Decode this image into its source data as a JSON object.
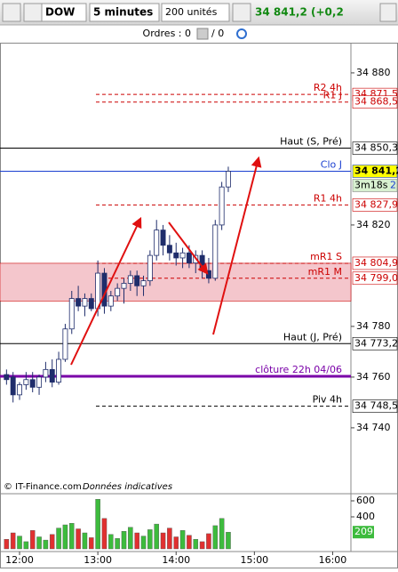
{
  "toolbar": {
    "instrument": "DOW",
    "timeframe": "5 minutes",
    "units": "200 unités",
    "price": "34 841,2 (+0,2"
  },
  "orders": {
    "label": "Ordres : 0",
    "pending": "/ 0"
  },
  "footer": {
    "source": "© IT-Finance.com",
    "note": "Données indicatives"
  },
  "chart_data": {
    "type": "candlestick",
    "x": [
      "11:50",
      "11:55",
      "12:00",
      "12:05",
      "12:10",
      "12:15",
      "12:20",
      "12:25",
      "12:30",
      "12:35",
      "12:40",
      "12:45",
      "12:50",
      "12:55",
      "13:00",
      "13:05",
      "13:10",
      "13:15",
      "13:20",
      "13:25",
      "13:30",
      "13:35",
      "13:40",
      "13:45",
      "13:50",
      "13:55",
      "14:00",
      "14:05",
      "14:10",
      "14:15",
      "14:20",
      "14:25",
      "14:30",
      "14:35",
      "14:40"
    ],
    "open": [
      34761,
      34760,
      34753,
      34757,
      34759,
      34756,
      34760,
      34763,
      34758,
      34767,
      34779,
      34791,
      34788,
      34791,
      34787,
      34801,
      34788,
      34792,
      34795,
      34797,
      34800,
      34796,
      34798,
      34808,
      34818,
      34812,
      34809,
      34807,
      34809,
      34805,
      34808,
      34802,
      34799,
      34820,
      34835
    ],
    "high": [
      34763,
      34762,
      34758,
      34762,
      34762,
      34761,
      34766,
      34767,
      34770,
      34781,
      34794,
      34796,
      34793,
      34793,
      34806,
      34803,
      34794,
      34797,
      34799,
      34802,
      34802,
      34800,
      34810,
      34822,
      34820,
      34816,
      34813,
      34811,
      34812,
      34810,
      34810,
      34807,
      34822,
      34837,
      34843
    ],
    "low": [
      34757,
      34750,
      34751,
      34755,
      34754,
      34753,
      34758,
      34756,
      34757,
      34766,
      34777,
      34786,
      34784,
      34786,
      34784,
      34785,
      34786,
      34790,
      34789,
      34794,
      34792,
      34792,
      34796,
      34806,
      34808,
      34806,
      34804,
      34803,
      34803,
      34801,
      34799,
      34797,
      34798,
      34818,
      34833
    ],
    "close": [
      34759,
      34753,
      34757,
      34759,
      34756,
      34760,
      34763,
      34758,
      34767,
      34779,
      34791,
      34788,
      34791,
      34787,
      34801,
      34788,
      34792,
      34795,
      34797,
      34800,
      34796,
      34798,
      34808,
      34818,
      34812,
      34809,
      34807,
      34809,
      34805,
      34808,
      34802,
      34799,
      34820,
      34835,
      34841.2
    ],
    "up_color": "#ffffff",
    "down_color": "#1f2d6b",
    "outline_color": "#1f2d6b",
    "xlim": [
      "11:45",
      "16:14"
    ],
    "xticks": [
      "12:00",
      "13:00",
      "14:00",
      "15:00",
      "16:00"
    ],
    "ylim": [
      34714,
      34891.2
    ],
    "yticks": [
      {
        "value": 34880,
        "label": "34 880"
      },
      {
        "value": 34820,
        "label": "34 820"
      },
      {
        "value": 34780,
        "label": "34 780"
      },
      {
        "value": 34760,
        "label": "34 760"
      },
      {
        "value": 34740,
        "label": "34 740"
      }
    ],
    "zone": {
      "from": 34790,
      "to": 34804.9,
      "color": "#f4c6cc"
    },
    "levels": [
      {
        "name": "R2 4h",
        "value": 34871.5,
        "value_label": "34 871,5",
        "color": "#cc0000",
        "style": "dashed"
      },
      {
        "name": "R1 J",
        "value": 34868.5,
        "value_label": "34 868,5",
        "color": "#cc0000",
        "style": "dashed"
      },
      {
        "name": "Haut (S, Pré)",
        "value": 34850.3,
        "value_label": "34 850,3",
        "color": "#000000",
        "style": "solid"
      },
      {
        "name": "Clo J",
        "value": 34841.2,
        "value_label": "34 841,2",
        "color": "#1a3fd0",
        "style": "solid",
        "highlight": "#ffff00"
      },
      {
        "name": "R1 4h",
        "value": 34827.9,
        "value_label": "34 827,9",
        "color": "#cc0000",
        "style": "dashed"
      },
      {
        "name": "mR1 S",
        "value": 34804.9,
        "value_label": "34 804,9",
        "color": "#cc0000",
        "style": "dashed"
      },
      {
        "name": "mR1 M",
        "value": 34799,
        "value_label": "34 799,0",
        "color": "#cc0000",
        "style": "dashed"
      },
      {
        "name": "Haut (J, Pré)",
        "value": 34773.2,
        "value_label": "34 773,2",
        "color": "#000000",
        "style": "solid"
      },
      {
        "name": "clôture 22h 04/06",
        "value": 34760.3,
        "color": "#7a00a8",
        "style": "thick"
      },
      {
        "name": "Piv 4h",
        "value": 34748.5,
        "value_label": "34 748,5",
        "color": "#000000",
        "style": "dashed"
      }
    ],
    "countdown": "3m18s",
    "countdown_index": "2",
    "volume": {
      "values": [
        120,
        200,
        160,
        90,
        230,
        150,
        110,
        180,
        260,
        300,
        320,
        250,
        200,
        140,
        620,
        380,
        180,
        130,
        220,
        270,
        200,
        160,
        240,
        310,
        200,
        260,
        150,
        230,
        170,
        120,
        90,
        190,
        290,
        380,
        209
      ],
      "up_color": "#3dbb3d",
      "down_color": "#e03030",
      "ylim": [
        0,
        689
      ],
      "yticks": [
        400,
        600
      ],
      "last_label": "209"
    }
  }
}
